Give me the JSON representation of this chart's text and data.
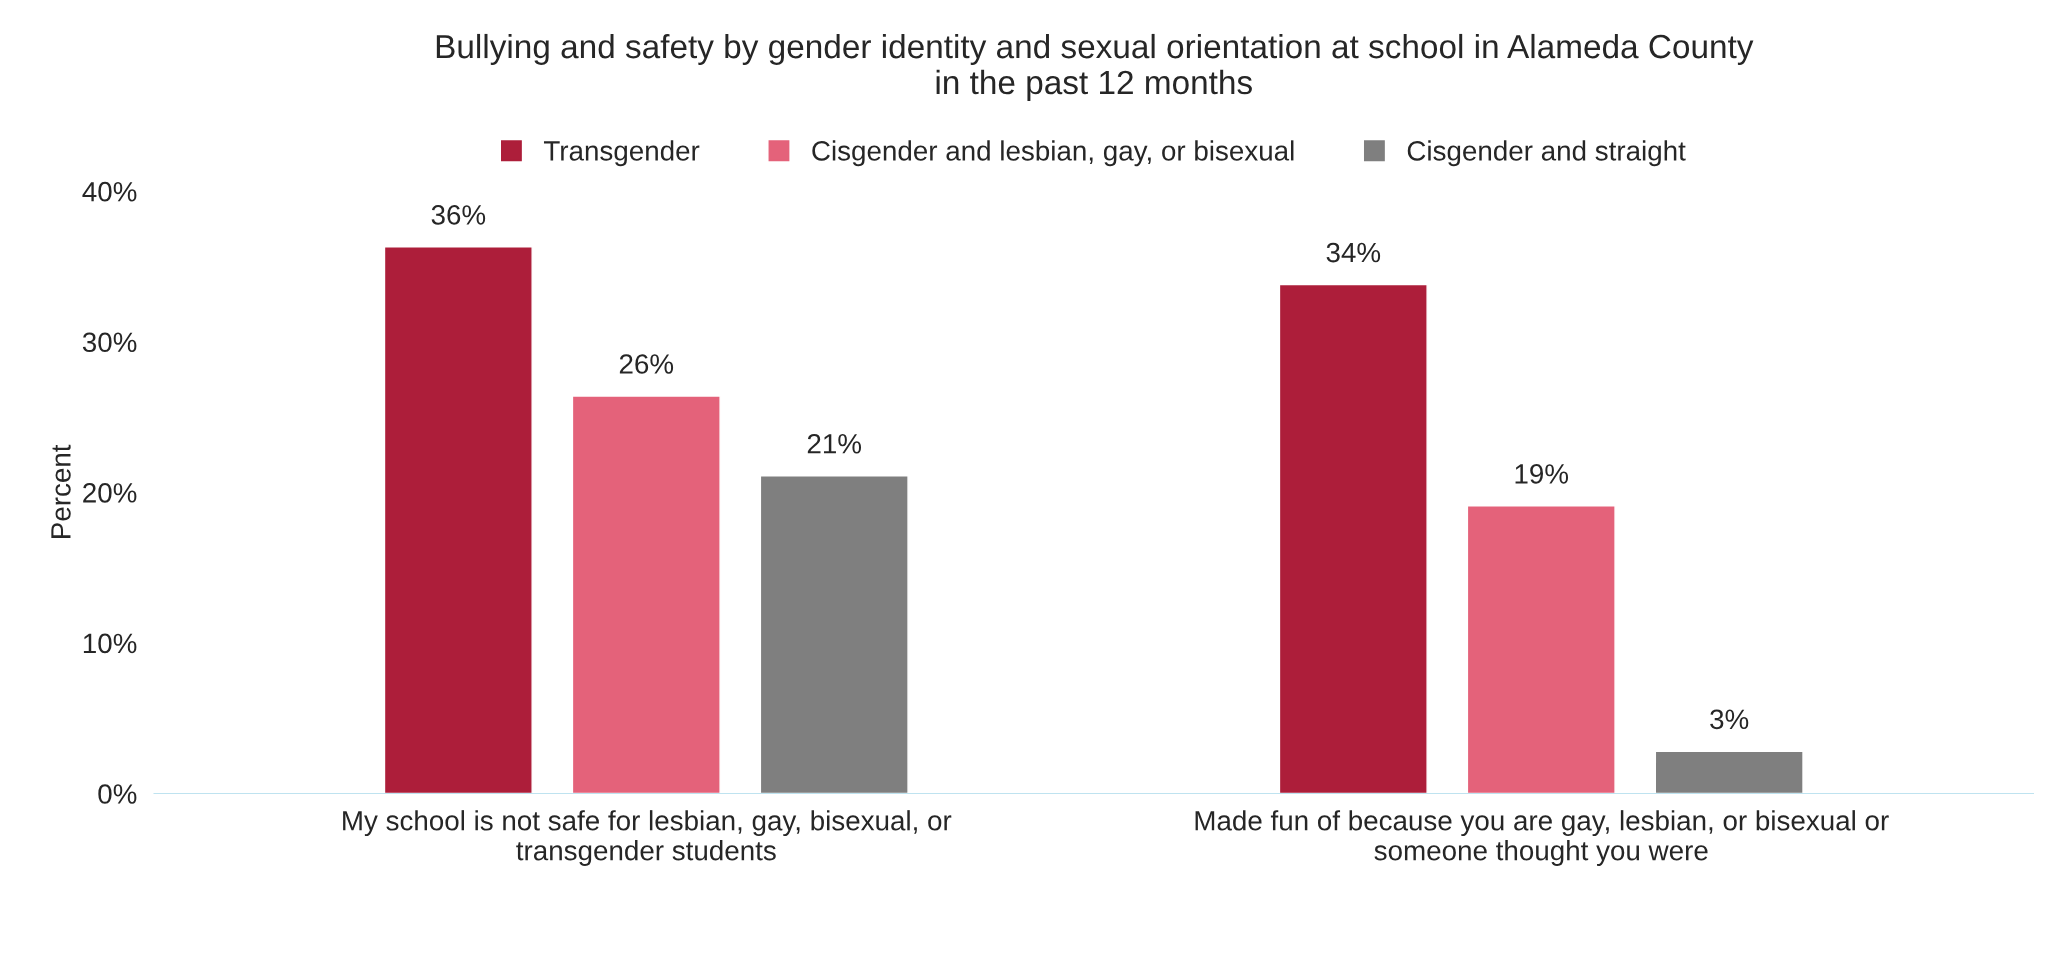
{
  "chart_data": {
    "type": "bar",
    "title": "Bullying and safety by gender identity and sexual orientation at school in Alameda County\nin the past 12 months",
    "ylabel": "Percent",
    "categories": [
      "My school is not safe for lesbian, gay, bisexual, or\ntransgender students",
      "Made fun of because you are gay, lesbian, or bisexual or\nsomeone thought you were"
    ],
    "series": [
      {
        "name": "Transgender",
        "color": "#ad1e3a",
        "values": [
          36.3,
          33.8
        ],
        "value_labels": [
          "36%",
          "34%"
        ]
      },
      {
        "name": "Cisgender and lesbian, gay, or bisexual",
        "color": "#e4627a",
        "values": [
          26.4,
          19.1
        ],
        "value_labels": [
          "26%",
          "19%"
        ]
      },
      {
        "name": "Cisgender and straight",
        "color": "#7f7f7f",
        "values": [
          21.1,
          2.8
        ],
        "value_labels": [
          "21%",
          "3%"
        ]
      }
    ],
    "ylim": [
      0,
      40
    ],
    "yticks": [
      {
        "value": 0,
        "label": "0%"
      },
      {
        "value": 10,
        "label": "10%"
      },
      {
        "value": 20,
        "label": "20%"
      },
      {
        "value": 30,
        "label": "30%"
      },
      {
        "value": 40,
        "label": "40%"
      }
    ],
    "grid": false,
    "legend": "top"
  }
}
